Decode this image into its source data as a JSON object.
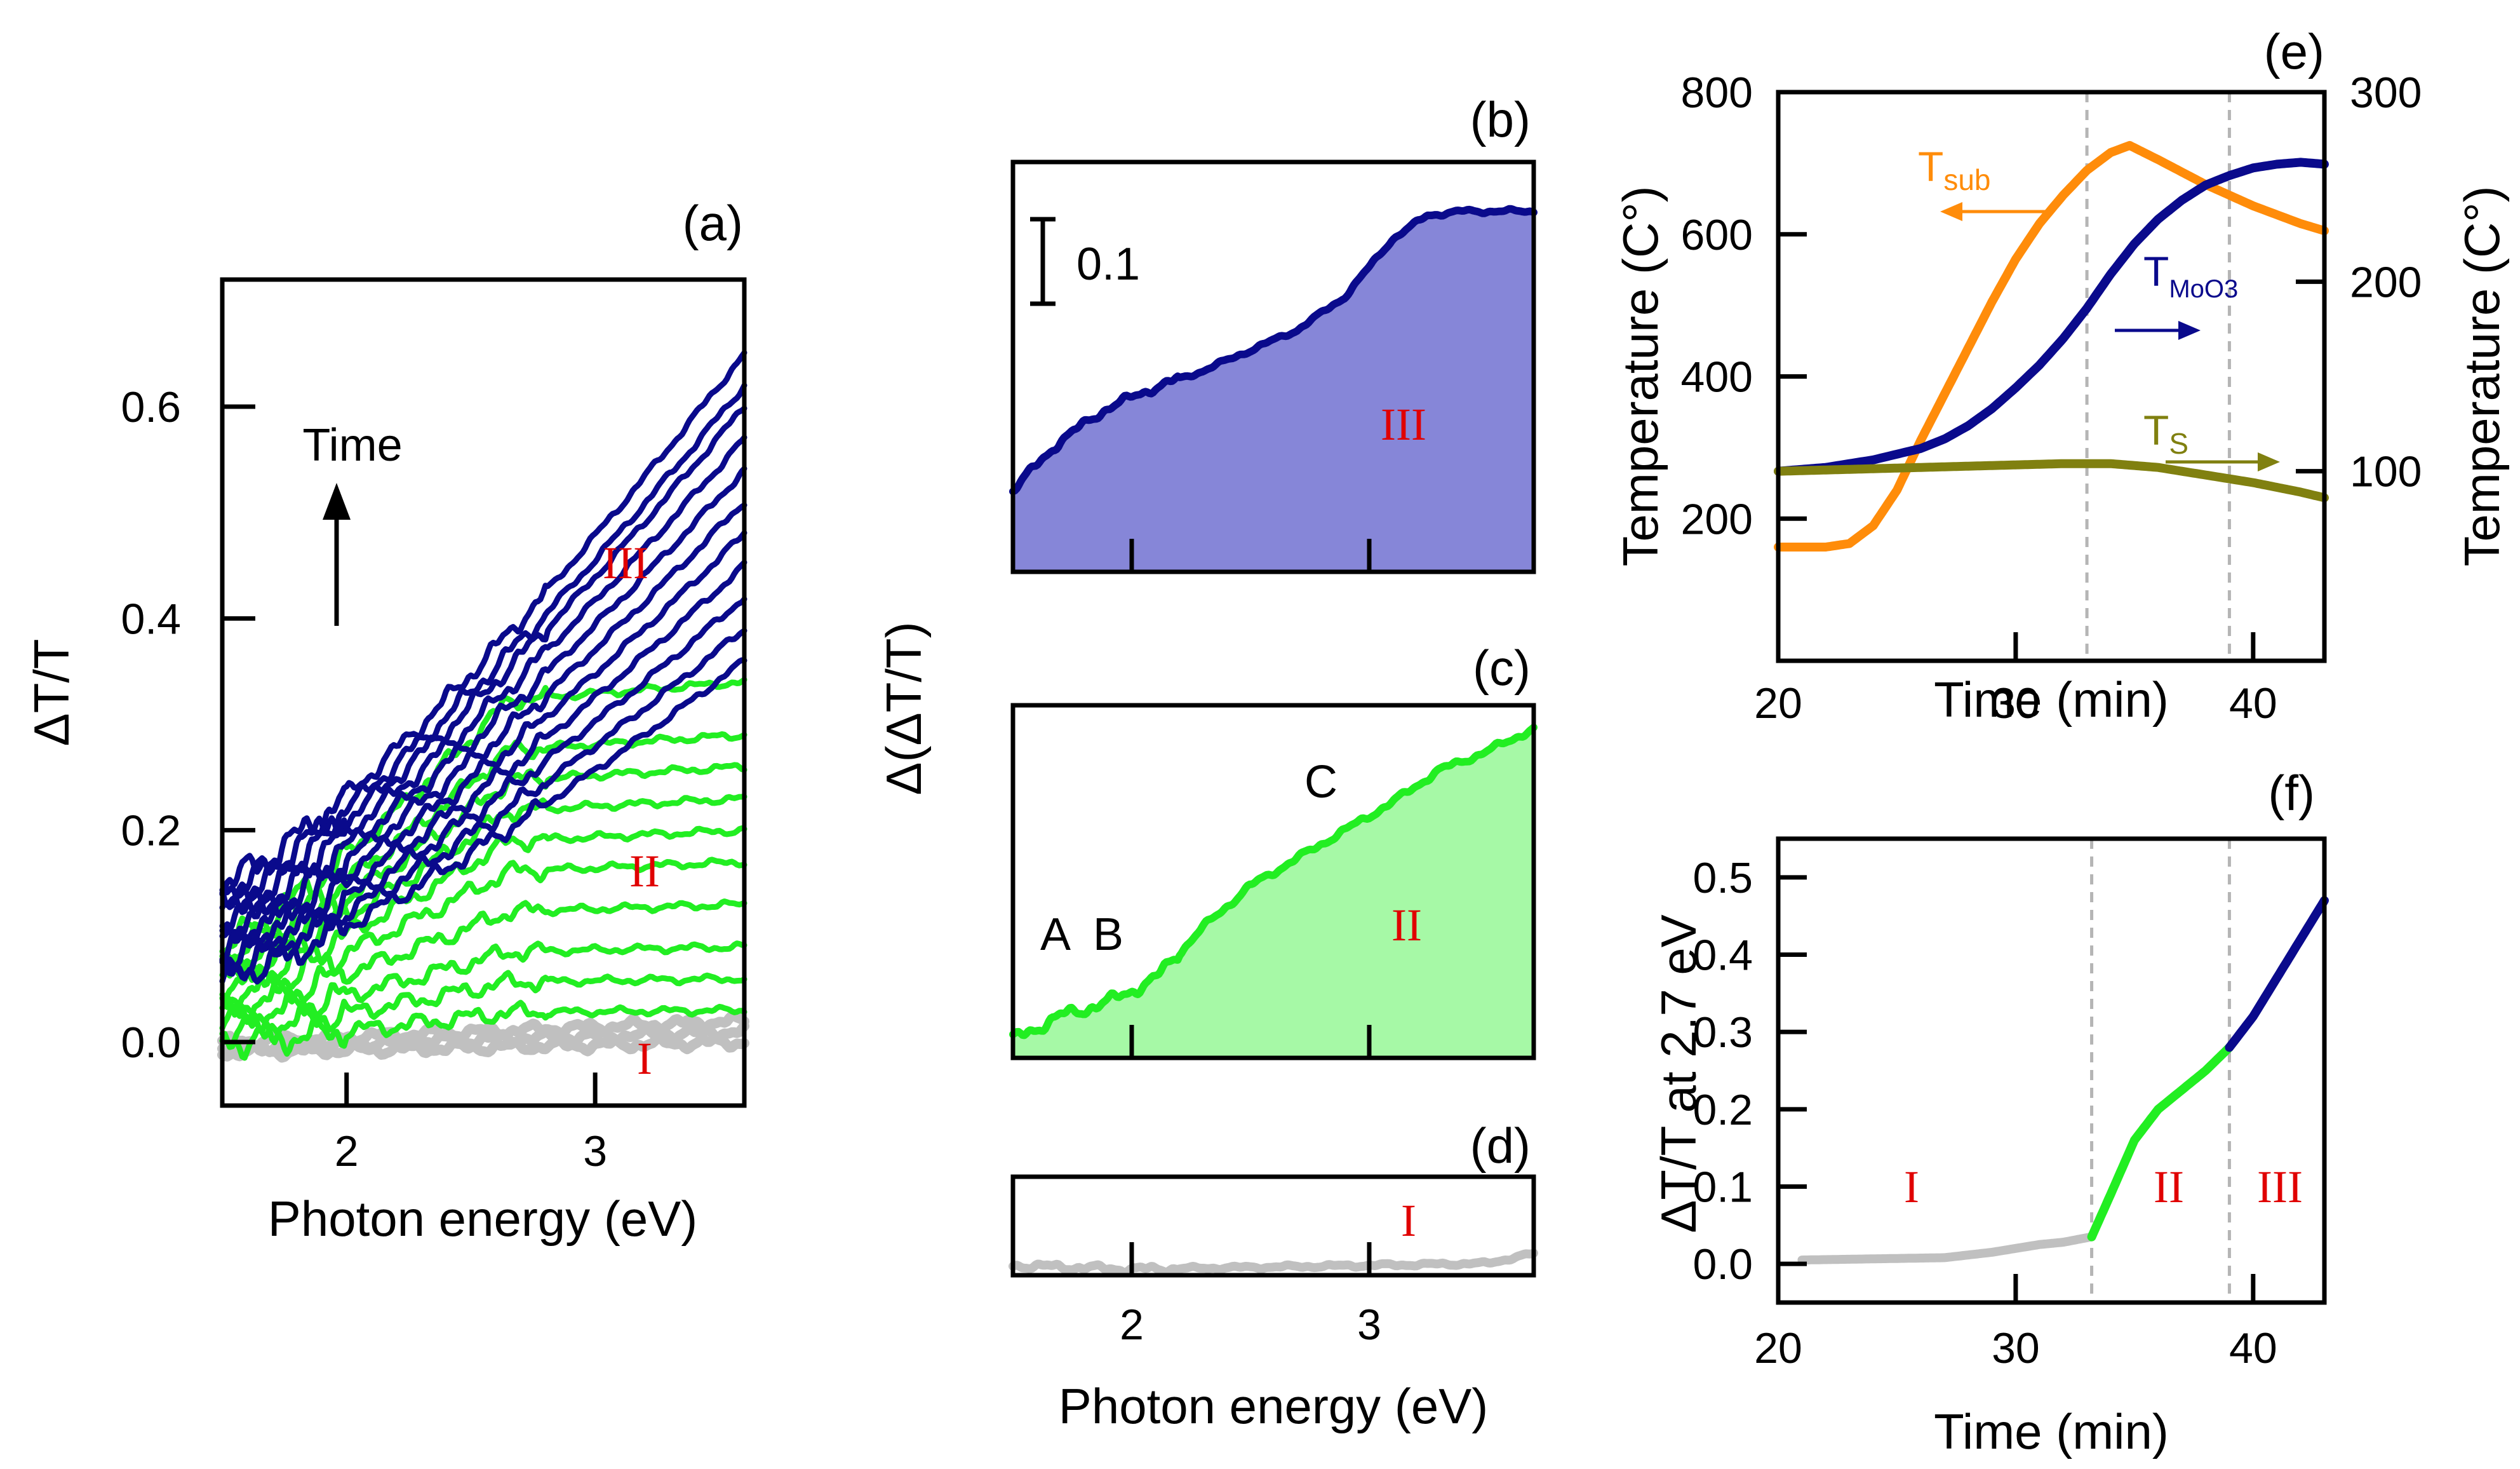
{
  "chart_data": [
    {
      "panel": "a",
      "type": "line",
      "panel_label": "(a)",
      "xlabel": "Photon energy (eV)",
      "ylabel": "ΔT/T",
      "xlim": [
        1.5,
        3.6
      ],
      "ylim": [
        -0.06,
        0.72
      ],
      "xticks": [
        2,
        3
      ],
      "yticks": [
        0.0,
        0.2,
        0.4,
        0.6
      ],
      "ytick_labels": [
        "0.0",
        "0.2",
        "0.4",
        "0.6"
      ],
      "arrow_label": "Time",
      "annotations": [
        "III",
        "II",
        "I"
      ],
      "stage_colors": {
        "I": "#c0c0c0",
        "II": "#22ee22",
        "III": "#0a0a8c"
      },
      "series_groups": [
        {
          "stage": "I",
          "color": "#c0c0c0",
          "count": 3,
          "end_values": [
            0.0,
            0.01,
            0.02
          ]
        },
        {
          "stage": "II",
          "color": "#22ee22",
          "count": 10,
          "end_values": [
            0.03,
            0.06,
            0.09,
            0.13,
            0.17,
            0.2,
            0.23,
            0.26,
            0.29,
            0.34
          ]
        },
        {
          "stage": "III",
          "color": "#0a0a8c",
          "count": 11,
          "end_values": [
            0.36,
            0.39,
            0.42,
            0.45,
            0.48,
            0.51,
            0.54,
            0.57,
            0.6,
            0.62,
            0.65
          ]
        }
      ]
    },
    {
      "panel": "b",
      "type": "area",
      "panel_label": "(b)",
      "scale_bar_label": "0.1",
      "annotation": "III",
      "color": "#0a0a8c",
      "fill": "#8686d8",
      "x": [
        1.5,
        1.7,
        1.9,
        2.1,
        2.3,
        2.5,
        2.7,
        2.9,
        3.1,
        3.25,
        3.4,
        3.7
      ],
      "y": [
        0.1,
        0.16,
        0.2,
        0.225,
        0.245,
        0.27,
        0.295,
        0.335,
        0.405,
        0.435,
        0.44,
        0.44
      ]
    },
    {
      "panel": "c",
      "type": "area",
      "panel_label": "(c)",
      "annotations": [
        "A",
        "B",
        "C",
        "II"
      ],
      "color": "#22ee22",
      "fill": "#a6f9a6",
      "x": [
        1.5,
        1.7,
        1.9,
        2.1,
        2.3,
        2.5,
        2.7,
        2.9,
        3.1,
        3.3,
        3.5,
        3.7
      ],
      "y": [
        0.02,
        0.045,
        0.06,
        0.085,
        0.14,
        0.185,
        0.215,
        0.245,
        0.275,
        0.31,
        0.33,
        0.355
      ]
    },
    {
      "panel": "d",
      "type": "line",
      "panel_label": "(d)",
      "annotation": "I",
      "xlabel": "Photon energy (eV)",
      "ylabel": "Δ(ΔT/T)",
      "xticks": [
        2,
        3
      ],
      "color": "#c0c0c0",
      "x": [
        1.5,
        2.0,
        2.5,
        3.0,
        3.5,
        3.7
      ],
      "y": [
        0.01,
        0.006,
        0.008,
        0.01,
        0.012,
        0.022
      ]
    },
    {
      "panel": "e",
      "type": "line",
      "panel_label": "(e)",
      "xlabel": "Time (min)",
      "ylabel_left": "Temperature (C°)",
      "ylabel_right": "Temperature (C°)",
      "xlim": [
        20,
        43
      ],
      "xticks": [
        20,
        30,
        40
      ],
      "ylim_left": [
        0,
        800
      ],
      "yticks_left": [
        200,
        400,
        600,
        800
      ],
      "ylim_right": [
        0,
        300
      ],
      "yticks_right": [
        100,
        200,
        300
      ],
      "vlines": [
        33,
        39
      ],
      "series": [
        {
          "name": "sub",
          "axis": "left",
          "color": "#ff8c0a",
          "x": [
            20,
            21,
            22,
            23,
            24,
            25,
            26,
            27,
            28,
            29,
            30,
            31,
            32,
            33,
            34,
            34.8,
            36,
            38,
            40,
            42,
            43
          ],
          "y": [
            160,
            160,
            160,
            165,
            190,
            240,
            310,
            375,
            440,
            505,
            565,
            615,
            655,
            690,
            715,
            725,
            705,
            670,
            640,
            615,
            605
          ]
        },
        {
          "name": "MoO3",
          "axis": "right",
          "color": "#0a0a8c",
          "x": [
            20,
            22,
            24,
            26,
            27,
            28,
            29,
            30,
            31,
            32,
            33,
            34,
            35,
            36,
            37,
            38,
            39,
            40,
            41,
            42,
            43
          ],
          "y": [
            100,
            102,
            106,
            112,
            117,
            124,
            133,
            144,
            156,
            170,
            186,
            204,
            220,
            233,
            243,
            251,
            256,
            260,
            262,
            263,
            262
          ]
        },
        {
          "name": "S",
          "axis": "right",
          "color": "#808010",
          "x": [
            20,
            23,
            26,
            29,
            32,
            34,
            36,
            38,
            40,
            42,
            43
          ],
          "y": [
            100,
            101,
            102,
            103,
            104,
            104,
            102,
            98,
            94,
            89,
            86
          ]
        }
      ]
    },
    {
      "panel": "f",
      "type": "line",
      "panel_label": "(f)",
      "xlabel": "Time (min)",
      "ylabel": "ΔT/T at 2.7 eV",
      "xlim": [
        20,
        43
      ],
      "xticks": [
        20,
        30,
        40
      ],
      "ylim": [
        -0.05,
        0.55
      ],
      "yticks": [
        0.0,
        0.1,
        0.2,
        0.3,
        0.4,
        0.5
      ],
      "ytick_labels": [
        "0.0",
        "0.1",
        "0.2",
        "0.3",
        "0.4",
        "0.5"
      ],
      "vlines": [
        33.2,
        39
      ],
      "annotations": [
        "I",
        "II",
        "III"
      ],
      "series": [
        {
          "stage": "I",
          "color": "#c0c0c0",
          "x": [
            21,
            23,
            25,
            27,
            29,
            31,
            32,
            33.2
          ],
          "y": [
            0.005,
            0.006,
            0.007,
            0.008,
            0.015,
            0.025,
            0.028,
            0.035
          ]
        },
        {
          "stage": "II",
          "color": "#22ee22",
          "x": [
            33.2,
            34,
            35,
            36,
            37,
            38,
            39
          ],
          "y": [
            0.035,
            0.09,
            0.16,
            0.2,
            0.225,
            0.25,
            0.28
          ]
        },
        {
          "stage": "III",
          "color": "#0a0a8c",
          "x": [
            39,
            40,
            41,
            42,
            43
          ],
          "y": [
            0.28,
            0.32,
            0.37,
            0.42,
            0.47
          ]
        }
      ]
    }
  ]
}
